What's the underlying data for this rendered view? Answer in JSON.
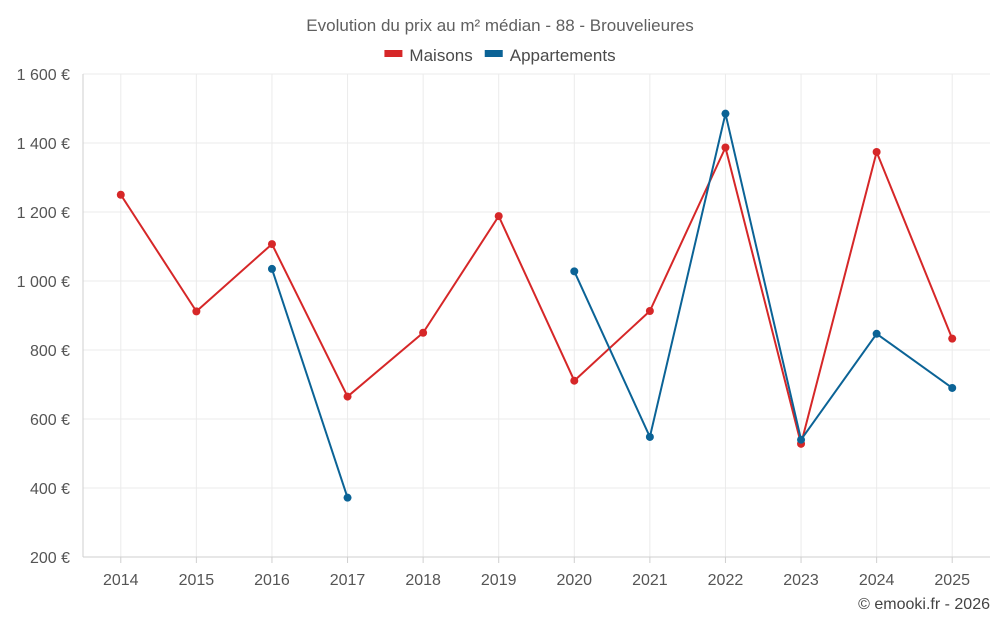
{
  "chart_data": {
    "type": "line",
    "title": "Evolution du prix au m² médian - 88 - Brouvelieures",
    "categories": [
      "2014",
      "2015",
      "2016",
      "2017",
      "2018",
      "2019",
      "2020",
      "2021",
      "2022",
      "2023",
      "2024",
      "2025"
    ],
    "ylim": [
      200,
      1600
    ],
    "yticks": [
      200,
      400,
      600,
      800,
      1000,
      1200,
      1400,
      1600
    ],
    "ytick_labels": [
      "200 €",
      "400 €",
      "600 €",
      "800 €",
      "1 000 €",
      "1 200 €",
      "1 400 €",
      "1 600 €"
    ],
    "grid": true,
    "legend_position": "top-center",
    "series": [
      {
        "name": "Maisons",
        "color": "#d62728",
        "values": [
          1250,
          912,
          1107,
          665,
          850,
          1188,
          711,
          913,
          1387,
          528,
          1374,
          833
        ]
      },
      {
        "name": "Appartements",
        "color": "#0b6396",
        "values": [
          null,
          null,
          1035,
          372,
          null,
          null,
          1028,
          548,
          1485,
          540,
          847,
          690
        ]
      }
    ]
  },
  "footer": {
    "copyright": "© emooki.fr - 2026"
  }
}
